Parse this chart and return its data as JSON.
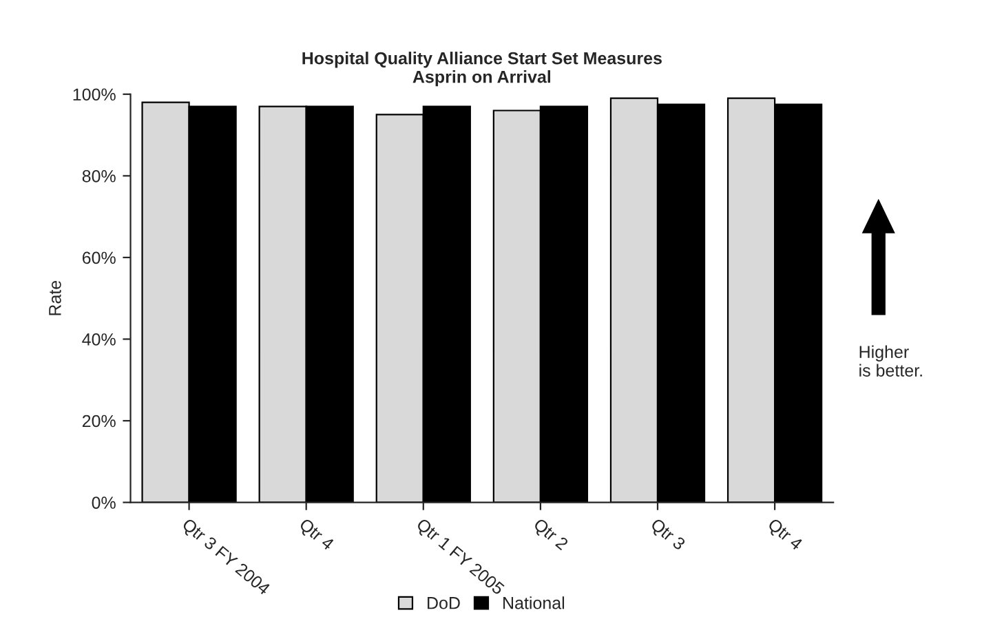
{
  "chart_data": {
    "type": "bar",
    "title": "Hospital Quality Alliance Start Set Measures\nAsprin on Arrival",
    "ylabel": "Rate",
    "categories": [
      "Qtr 3 FY 2004",
      "Qtr 4",
      "Qtr 1 FY 2005",
      "Qtr 2",
      "Qtr 3",
      "Qtr 4"
    ],
    "series": [
      {
        "name": "DoD",
        "color": "#d9d9d9",
        "values": [
          98,
          97,
          95,
          96,
          99,
          99
        ]
      },
      {
        "name": "National",
        "color": "#000000",
        "values": [
          97,
          97,
          97,
          97,
          97.5,
          97.5
        ]
      }
    ],
    "ylim": [
      0,
      100
    ],
    "yticks": [
      {
        "value": 0,
        "label": "0%"
      },
      {
        "value": 20,
        "label": "20%"
      },
      {
        "value": 40,
        "label": "40%"
      },
      {
        "value": 60,
        "label": "60%"
      },
      {
        "value": 80,
        "label": "80%"
      },
      {
        "value": 100,
        "label": "100%"
      }
    ],
    "annotations": [
      "Higher\nis better."
    ],
    "legend": "bottom",
    "grid": false
  }
}
